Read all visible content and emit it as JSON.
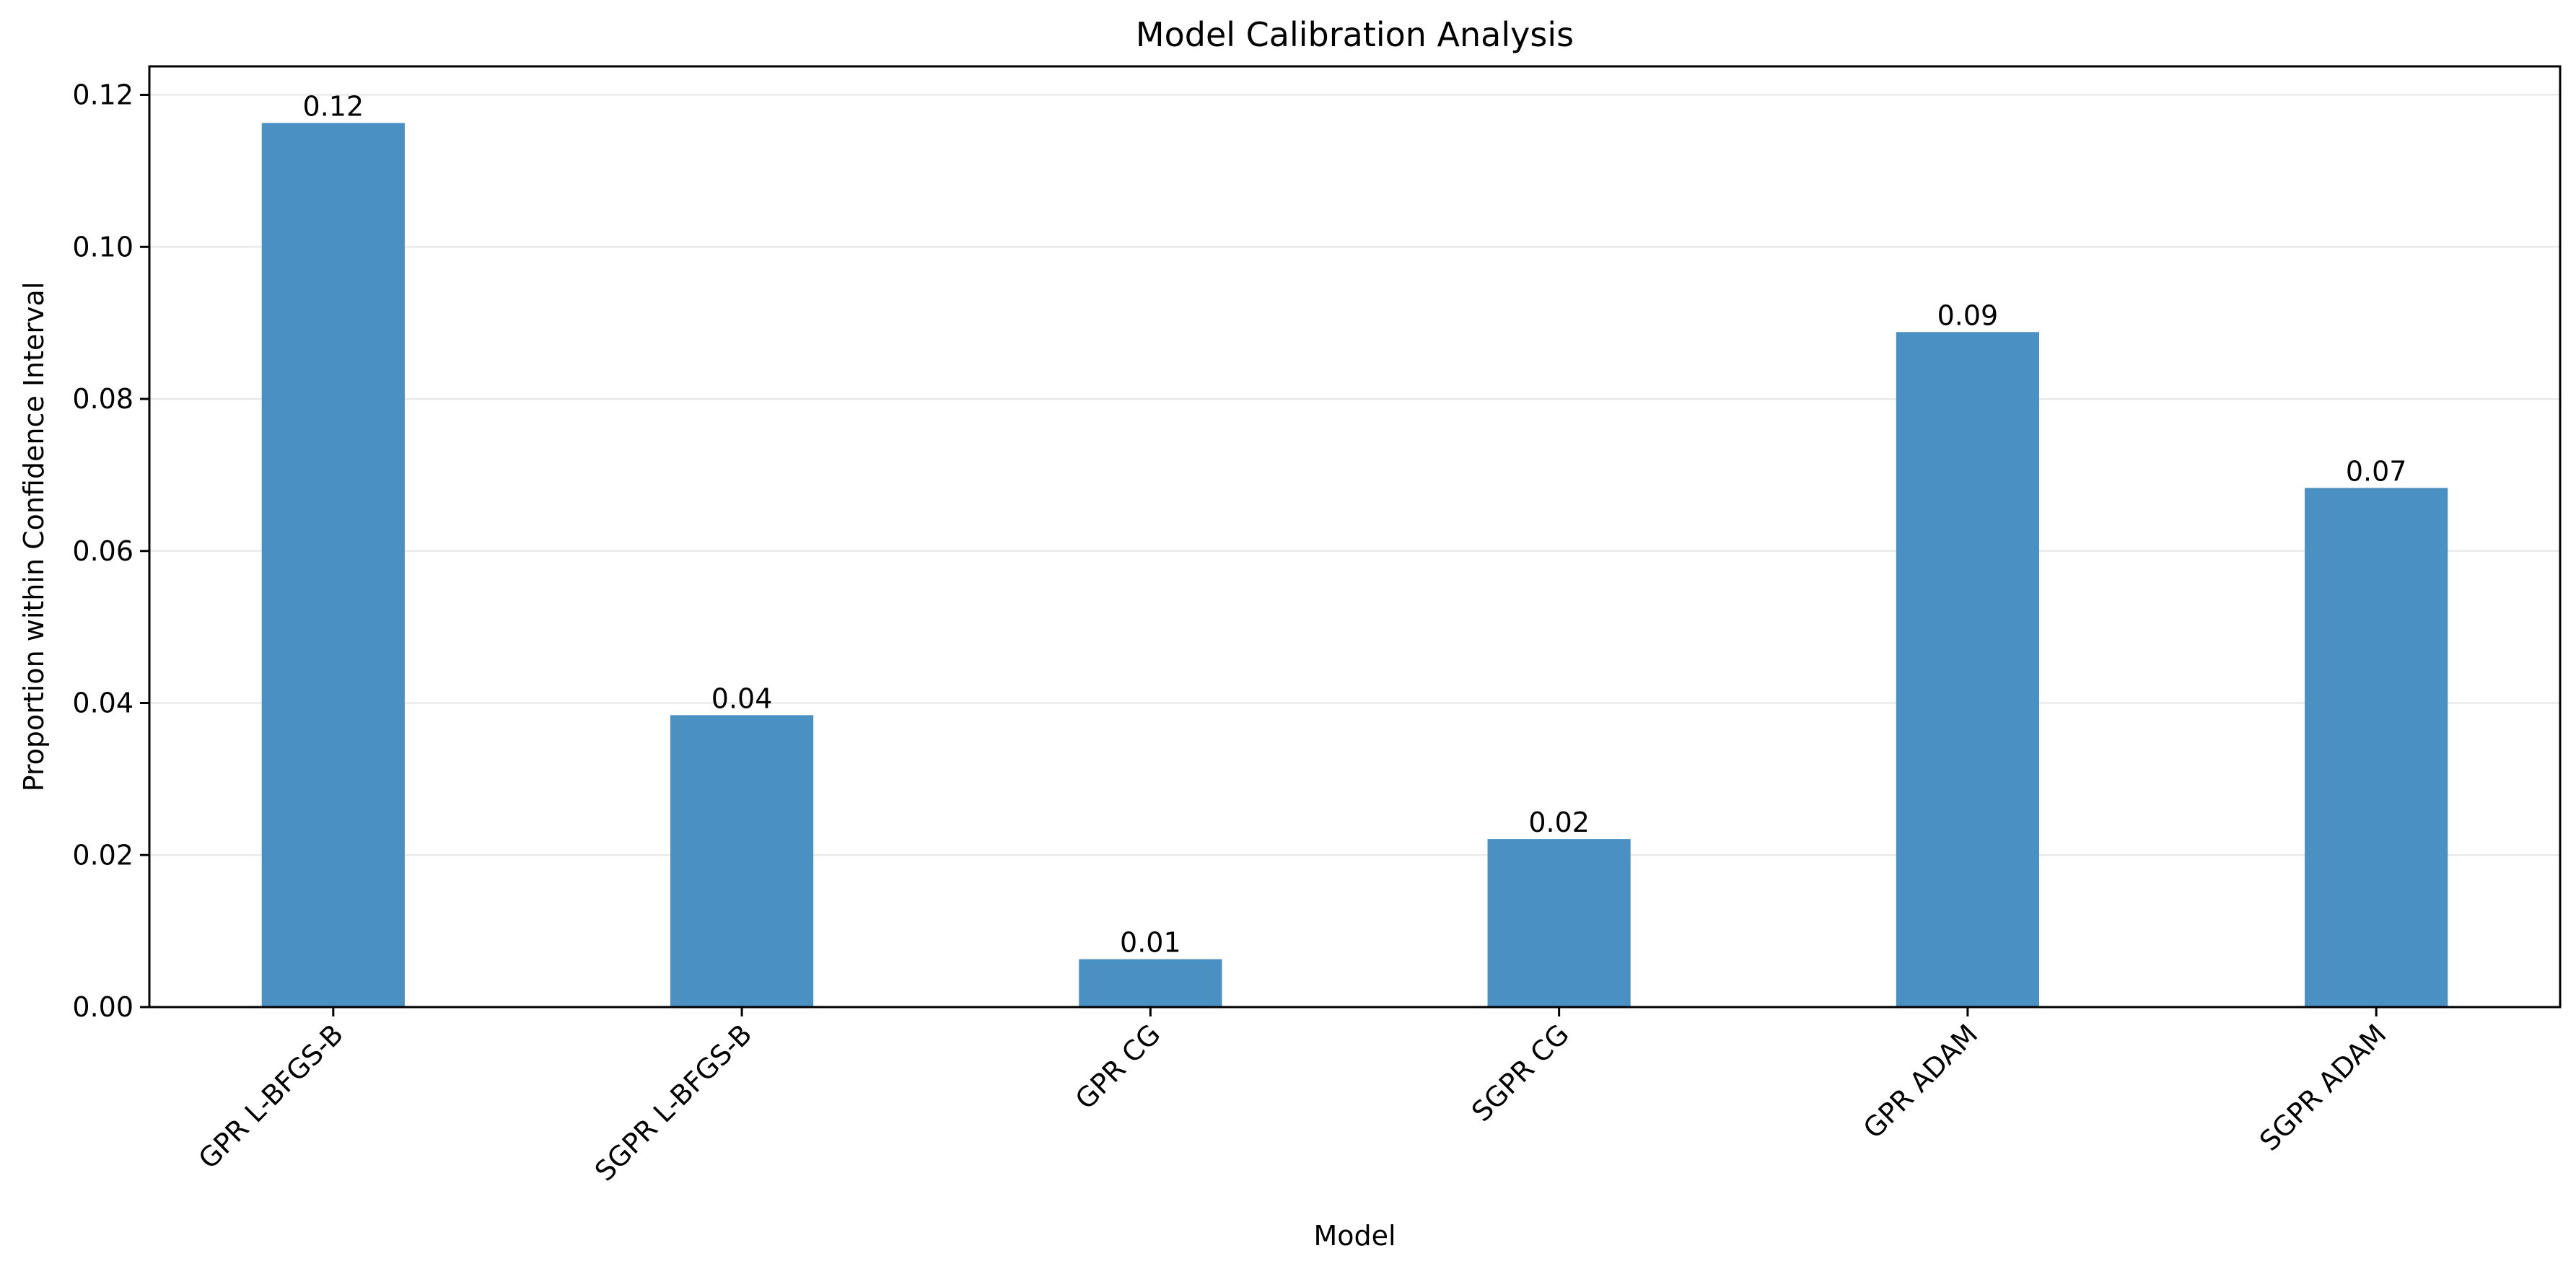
{
  "chart_data": {
    "type": "bar",
    "title": "Model Calibration Analysis",
    "xlabel": "Model",
    "ylabel": "Proportion within Confidence Interval",
    "categories": [
      "GPR L-BFGS-B",
      "SGPR L-BFGS-B",
      "GPR CG",
      "SGPR CG",
      "GPR ADAM",
      "SGPR ADAM"
    ],
    "values": [
      0.1163,
      0.0384,
      0.0063,
      0.0221,
      0.0888,
      0.0683
    ],
    "data_labels": [
      "0.12",
      "0.04",
      "0.01",
      "0.02",
      "0.09",
      "0.07"
    ],
    "ylim": [
      0,
      0.12375
    ],
    "yticks": [
      0.0,
      0.02,
      0.04,
      0.06,
      0.08,
      0.1,
      0.12
    ],
    "ytick_labels": [
      "0.00",
      "0.02",
      "0.04",
      "0.06",
      "0.08",
      "0.10",
      "0.12"
    ],
    "grid": "horizontal",
    "bar_color": "#4a90c2",
    "grid_color": "#e6e6e6"
  }
}
